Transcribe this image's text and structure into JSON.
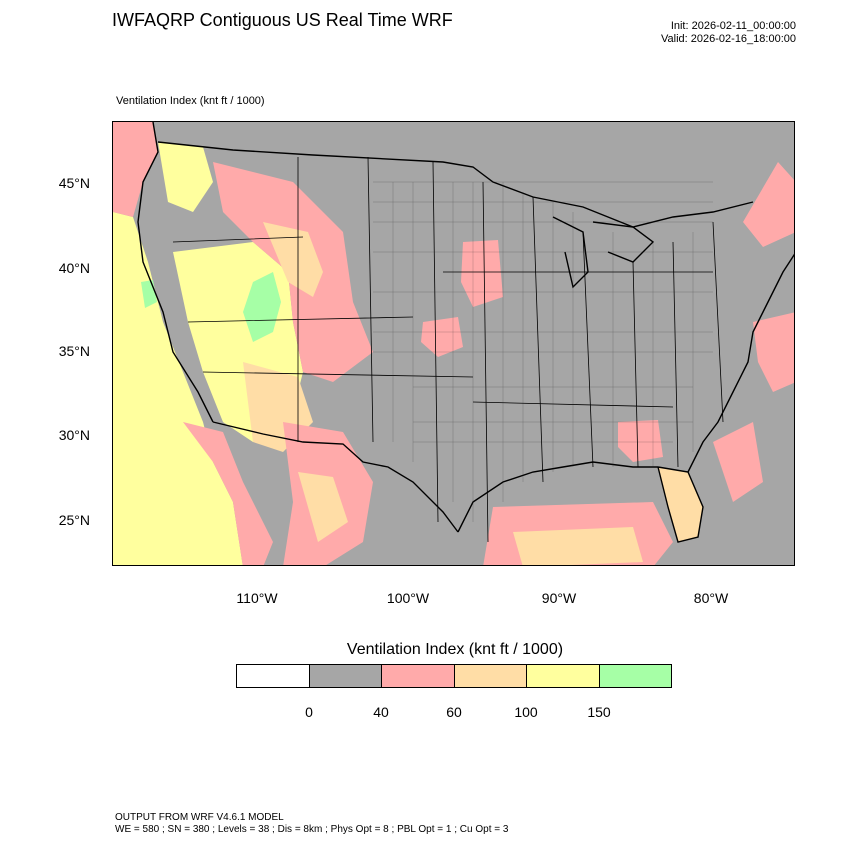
{
  "header": {
    "title": "IWFAQRP Contiguous US Real Time WRF",
    "init": "Init: 2026-02-11_00:00:00",
    "valid": "Valid: 2026-02-16_18:00:00"
  },
  "field_label": "Ventilation Index   (knt ft / 1000)",
  "map": {
    "lat_labels": [
      "45°N",
      "40°N",
      "35°N",
      "30°N",
      "25°N"
    ],
    "lon_labels": [
      "110°W",
      "100°W",
      "90°W",
      "80°W"
    ],
    "land_color": "#a6a6a6",
    "ocean_color": "#a6a6a6"
  },
  "colorbar": {
    "title": "Ventilation Index  (knt ft / 1000)",
    "colors": [
      "#ffffff",
      "#a6a6a6",
      "#ffaaaa",
      "#ffdda6",
      "#ffff9e",
      "#a6ffa6"
    ],
    "labels": [
      "0",
      "40",
      "60",
      "100",
      "150"
    ]
  },
  "footer": {
    "line1": "OUTPUT FROM WRF V4.6.1 MODEL",
    "line2": "WE = 580 ; SN = 380 ; Levels = 38 ; Dis = 8km ; Phys Opt = 8 ; PBL Opt = 1 ; Cu Opt = 3"
  }
}
